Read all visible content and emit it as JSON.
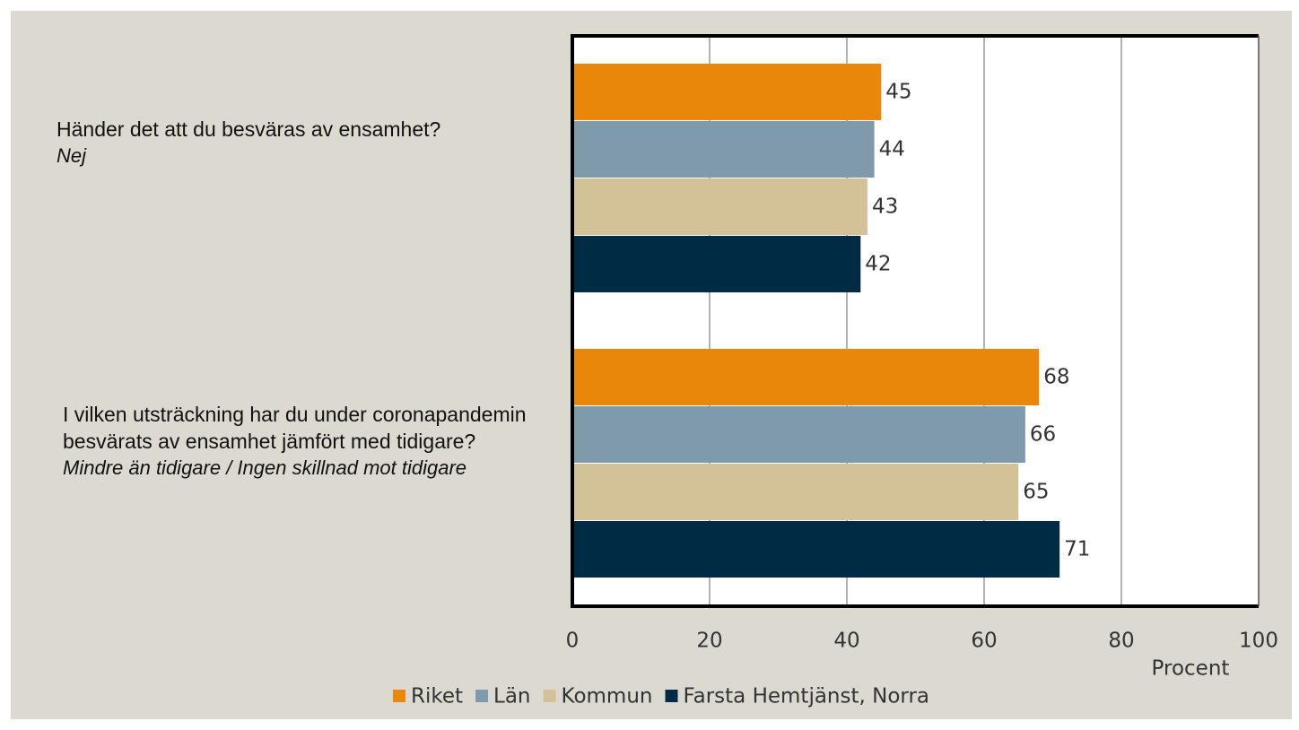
{
  "chart_data": {
    "type": "barh",
    "categories": [
      "Händer det att du besväras av ensamhet?",
      "I vilken utsträckning har du under coronapandemin besvärats av ensamhet jämfört med tidigare?"
    ],
    "category_subtitles": [
      "Nej",
      "Mindre än tidigare / Ingen skillnad mot tidigare"
    ],
    "series": [
      {
        "name": "Riket",
        "color": "#e8870a",
        "values": [
          45,
          68
        ]
      },
      {
        "name": "Län",
        "color": "#7f9bab",
        "values": [
          44,
          66
        ]
      },
      {
        "name": "Kommun",
        "color": "#d3c198",
        "values": [
          43,
          65
        ]
      },
      {
        "name": "Farsta Hemtjänst, Norra",
        "color": "#002b45",
        "values": [
          42,
          71
        ]
      }
    ],
    "xlabel": "Procent",
    "xlim": [
      0,
      100
    ],
    "xticks": [
      0,
      20,
      40,
      60,
      80,
      100
    ],
    "grid": true,
    "legend": "bottom"
  }
}
